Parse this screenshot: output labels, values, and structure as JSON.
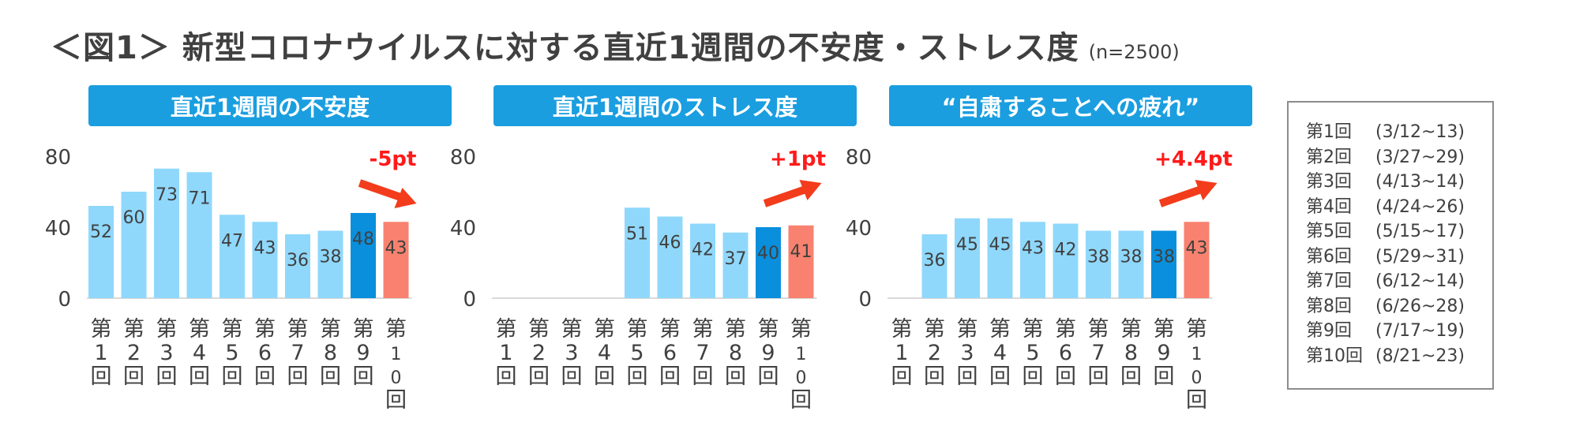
{
  "title": "＜図1＞ 新型コロナウイルスに対する直近1週間の不安度・ストレス度",
  "sample_size": "(n=2500)",
  "colors": {
    "panel_title_bg": "#1a9ee0",
    "bar_default": "#8fd8fb",
    "bar_highlight": "#0a8fdd",
    "bar_latest": "#f8826f",
    "change_label": "#ff1a1a",
    "arrow": "#f23c1c",
    "axis": "#d9d9d9"
  },
  "chart_data": [
    {
      "type": "bar",
      "title": "直近1週間の不安度",
      "categories": [
        "第1回",
        "第2回",
        "第3回",
        "第4回",
        "第5回",
        "第6回",
        "第7回",
        "第8回",
        "第9回",
        "第10回"
      ],
      "values": [
        52,
        60,
        73,
        71,
        47,
        43,
        36,
        38,
        48,
        43
      ],
      "yticks": [
        "0",
        "40",
        "80"
      ],
      "ylim": [
        0,
        80
      ],
      "change_label": "-5pt",
      "arrow_direction": "down"
    },
    {
      "type": "bar",
      "title": "直近1週間のストレス度",
      "categories": [
        "第1回",
        "第2回",
        "第3回",
        "第4回",
        "第5回",
        "第6回",
        "第7回",
        "第8回",
        "第9回",
        "第10回"
      ],
      "values": [
        null,
        null,
        null,
        null,
        51,
        46,
        42,
        37,
        40,
        41
      ],
      "yticks": [
        "0",
        "40",
        "80"
      ],
      "ylim": [
        0,
        80
      ],
      "change_label": "+1pt",
      "arrow_direction": "up"
    },
    {
      "type": "bar",
      "title": "“自粛することへの疲れ”",
      "categories": [
        "第1回",
        "第2回",
        "第3回",
        "第4回",
        "第5回",
        "第6回",
        "第7回",
        "第8回",
        "第9回",
        "第10回"
      ],
      "values": [
        null,
        36,
        45,
        45,
        43,
        42,
        38,
        38,
        38,
        43
      ],
      "yticks": [
        "0",
        "40",
        "80"
      ],
      "ylim": [
        0,
        80
      ],
      "change_label": "+4.4pt",
      "arrow_direction": "up"
    }
  ],
  "legend": [
    {
      "round": "第1回",
      "dates": "(3/12~13)"
    },
    {
      "round": "第2回",
      "dates": "(3/27~29)"
    },
    {
      "round": "第3回",
      "dates": "(4/13~14)"
    },
    {
      "round": "第4回",
      "dates": "(4/24~26)"
    },
    {
      "round": "第5回",
      "dates": "(5/15~17)"
    },
    {
      "round": "第6回",
      "dates": "(5/29~31)"
    },
    {
      "round": "第7回",
      "dates": "(6/12~14)"
    },
    {
      "round": "第8回",
      "dates": "(6/26~28)"
    },
    {
      "round": "第9回",
      "dates": "(7/17~19)"
    },
    {
      "round": "第10回",
      "dates": "(8/21~23)"
    }
  ]
}
